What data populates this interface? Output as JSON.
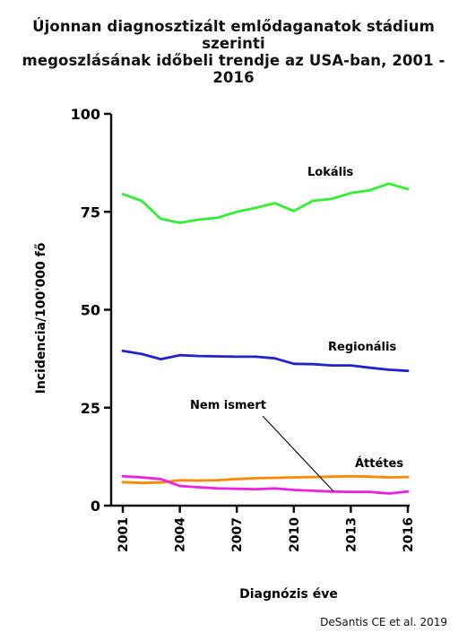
{
  "title_line1": "Újonnan diagnosztizált emlődaganatok stádium szerinti",
  "title_line2": "megoszlásának időbeli trendje az USA-ban, 2001 - 2016",
  "source": "DeSantis CE et al. 2019",
  "chart_data": {
    "type": "line",
    "xlabel": "Diagnózis éve",
    "ylabel": "Incidencia/100'000  fő",
    "ylim": [
      0,
      100
    ],
    "xlim": [
      2001,
      2016
    ],
    "x": [
      2001,
      2002,
      2003,
      2004,
      2005,
      2006,
      2007,
      2008,
      2009,
      2010,
      2011,
      2012,
      2013,
      2014,
      2015,
      2016
    ],
    "x_ticks": [
      "2001",
      "2004",
      "2007",
      "2010",
      "2013",
      "2016"
    ],
    "y_ticks": [
      "0",
      "25",
      "50",
      "75",
      "100"
    ],
    "grid": false,
    "series": [
      {
        "name": "Lokális",
        "color": "#33ee33",
        "values": [
          79.5,
          77.8,
          73.2,
          72.2,
          73.0,
          73.5,
          75.0,
          76.0,
          77.2,
          75.2,
          77.8,
          78.3,
          79.8,
          80.5,
          82.2,
          80.8
        ]
      },
      {
        "name": "Regionális",
        "color": "#2222cc",
        "values": [
          39.5,
          38.7,
          37.4,
          38.4,
          38.2,
          38.1,
          38.0,
          38.0,
          37.6,
          36.2,
          36.1,
          35.8,
          35.8,
          35.2,
          34.7,
          34.4
        ]
      },
      {
        "name": "Áttétes",
        "color": "#ff8800",
        "values": [
          6.0,
          5.8,
          5.9,
          6.5,
          6.4,
          6.5,
          6.8,
          7.0,
          7.1,
          7.2,
          7.3,
          7.4,
          7.5,
          7.4,
          7.2,
          7.3
        ]
      },
      {
        "name": "Nem ismert",
        "color": "#ee22dd",
        "values": [
          7.5,
          7.2,
          6.8,
          5.0,
          4.7,
          4.4,
          4.3,
          4.2,
          4.4,
          4.0,
          3.8,
          3.6,
          3.5,
          3.5,
          3.1,
          3.6
        ]
      }
    ]
  }
}
